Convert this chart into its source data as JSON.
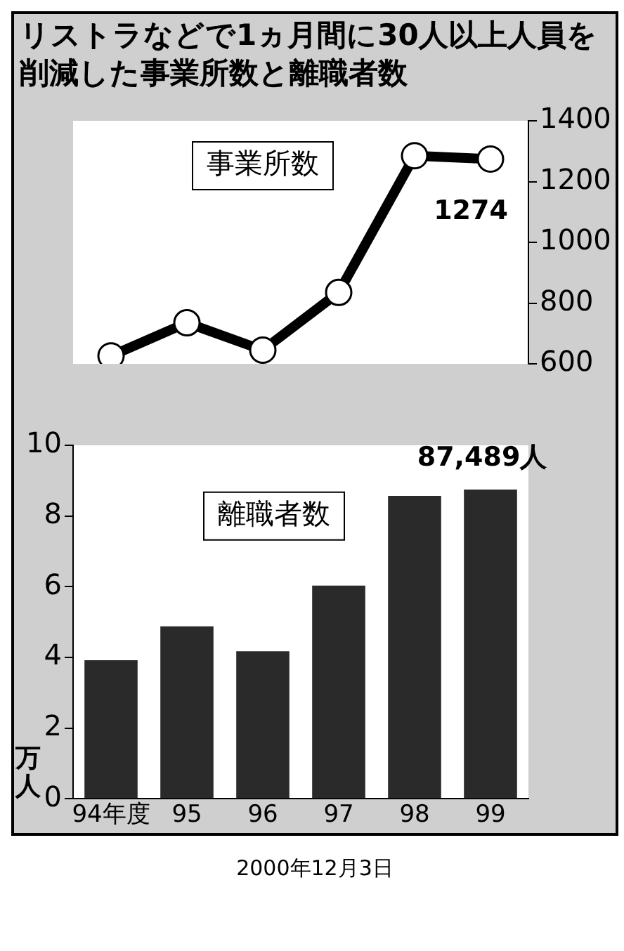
{
  "chart_data": [
    {
      "type": "line",
      "title": "リストラなどで1ヵ月間に30人以上人員を削減した事業所数と離職者数",
      "categories": [
        null,
        null,
        null,
        null,
        null,
        null
      ],
      "series": [
        {
          "name": "事業所数",
          "color": "#000000",
          "values": [
            626,
            735,
            645,
            835,
            1285,
            1274
          ],
          "value_labels": [
            null,
            null,
            null,
            null,
            null,
            "1274"
          ]
        }
      ],
      "ylim": [
        600,
        1400
      ],
      "yticks": [
        600,
        800,
        1000,
        1200,
        1400
      ],
      "tick_labels": "y",
      "marker": "circle",
      "grid": false,
      "legend": false
    },
    {
      "type": "bar",
      "categories": [
        "94年度",
        "95",
        "96",
        "97",
        "98",
        "99"
      ],
      "series": [
        {
          "name": "離職者数",
          "color": "#2a2a2a",
          "values": [
            3.92,
            4.88,
            4.17,
            6.03,
            8.57,
            8.75
          ]
        }
      ],
      "ylim": [
        0,
        10
      ],
      "yticks": [
        0,
        2,
        4,
        6,
        8,
        10
      ],
      "ylabel": "万人",
      "grid": false,
      "legend": false,
      "annotations": [
        {
          "text": "87,489人",
          "x": "99",
          "y": 8.75
        },
        "2000年12月3日"
      ]
    }
  ]
}
